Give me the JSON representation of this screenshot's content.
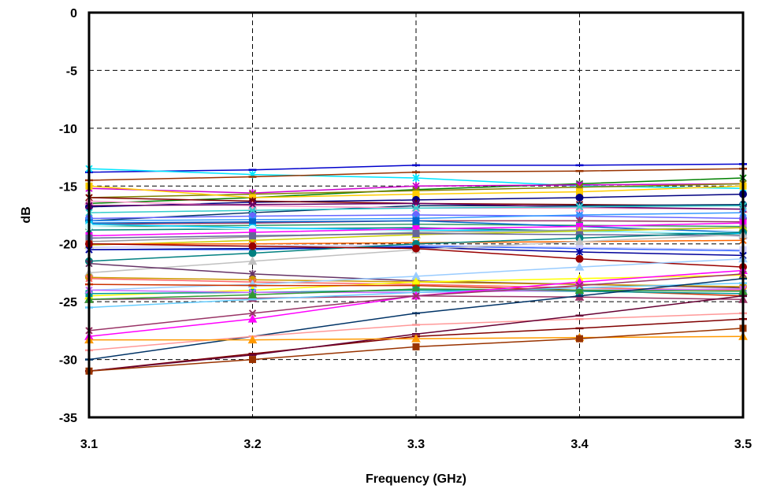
{
  "chart_data": {
    "type": "line",
    "title": "",
    "xlabel": "Frequency (GHz)",
    "ylabel": "dB",
    "x": [
      3.1,
      3.2,
      3.3,
      3.4,
      3.5
    ],
    "x_tick_labels": [
      "3.1",
      "3.2",
      "3.3",
      "3.4",
      "3.5"
    ],
    "y_tick_labels": [
      "0",
      "-5",
      "-10",
      "-15",
      "-20",
      "-25",
      "-30",
      "-35"
    ],
    "xlim": [
      3.1,
      3.5
    ],
    "ylim": [
      -35,
      0
    ],
    "y_ticks": [
      0,
      -5,
      -10,
      -15,
      -20,
      -25,
      -30,
      -35
    ],
    "grid": "dashed",
    "legend": "none",
    "series": [
      {
        "color": "#0000cc",
        "marker": "dash",
        "values": [
          -13.8,
          -13.6,
          -13.2,
          -13.2,
          -13.1
        ]
      },
      {
        "color": "#00e5ff",
        "marker": "star",
        "values": [
          -13.5,
          -14.0,
          -14.3,
          -15.0,
          -15.2
        ]
      },
      {
        "color": "#993300",
        "marker": "dash",
        "values": [
          -14.5,
          -14.2,
          -13.8,
          -13.7,
          -13.5
        ]
      },
      {
        "color": "#008000",
        "marker": "star",
        "values": [
          -16.5,
          -16.0,
          -15.3,
          -14.8,
          -14.3
        ]
      },
      {
        "color": "#cc00cc",
        "marker": "star",
        "values": [
          -15.2,
          -15.6,
          -15.0,
          -14.9,
          -14.8
        ]
      },
      {
        "color": "#808000",
        "marker": "x",
        "values": [
          -16.0,
          -15.7,
          -15.4,
          -15.1,
          -14.8
        ]
      },
      {
        "color": "#ffcc00",
        "marker": "square",
        "values": [
          -15.0,
          -16.0,
          -15.7,
          -15.5,
          -15.0
        ]
      },
      {
        "color": "#000080",
        "marker": "circle",
        "values": [
          -16.8,
          -16.4,
          -16.2,
          -16.0,
          -15.7
        ]
      },
      {
        "color": "#800000",
        "marker": "star",
        "values": [
          -16.0,
          -16.3,
          -16.5,
          -16.6,
          -16.7
        ]
      },
      {
        "color": "#003366",
        "marker": "circle",
        "values": [
          -18.0,
          -17.3,
          -16.7,
          -16.7,
          -16.6
        ]
      },
      {
        "color": "#ff99cc",
        "marker": "triangle",
        "values": [
          -16.3,
          -16.7,
          -16.9,
          -16.9,
          -17.0
        ]
      },
      {
        "color": "#660066",
        "marker": "x",
        "values": [
          -16.7,
          -16.6,
          -16.5,
          -16.8,
          -17.0
        ]
      },
      {
        "color": "#33cccc",
        "marker": "x",
        "values": [
          -17.3,
          -17.1,
          -16.9,
          -16.8,
          -16.7
        ]
      },
      {
        "color": "#6666ff",
        "marker": "circle",
        "values": [
          -17.8,
          -17.6,
          -17.5,
          -17.6,
          -17.8
        ]
      },
      {
        "color": "#3399ff",
        "marker": "x",
        "values": [
          -18.0,
          -17.9,
          -17.8,
          -17.5,
          -17.3
        ]
      },
      {
        "color": "#993366",
        "marker": "star",
        "values": [
          -18.3,
          -18.2,
          -18.0,
          -18.0,
          -18.1
        ]
      },
      {
        "color": "#339966",
        "marker": "square",
        "values": [
          -18.5,
          -18.4,
          -18.3,
          -18.4,
          -18.5
        ]
      },
      {
        "color": "#0066cc",
        "marker": "square",
        "values": [
          -18.2,
          -18.1,
          -18.0,
          -18.5,
          -19.0
        ]
      },
      {
        "color": "#008080",
        "marker": "x",
        "values": [
          -18.8,
          -18.7,
          -18.6,
          -18.9,
          -19.2
        ]
      },
      {
        "color": "#00ccff",
        "marker": "square",
        "values": [
          -18.3,
          -18.6,
          -18.8,
          -18.9,
          -19.1
        ]
      },
      {
        "color": "#ccffff",
        "marker": "circle",
        "values": [
          -18.5,
          -18.7,
          -18.9,
          -19.0,
          -19.0
        ]
      },
      {
        "color": "#ff00ff",
        "marker": "square",
        "values": [
          -19.3,
          -19.0,
          -18.7,
          -18.5,
          -18.2
        ]
      },
      {
        "color": "#999999",
        "marker": "x",
        "values": [
          -19.8,
          -19.4,
          -19.0,
          -18.8,
          -18.6
        ]
      },
      {
        "color": "#cccc00",
        "marker": "triangle",
        "values": [
          -20.1,
          -19.7,
          -19.2,
          -18.9,
          -18.6
        ]
      },
      {
        "color": "#666699",
        "marker": "square",
        "values": [
          -19.5,
          -19.3,
          -19.1,
          -19.2,
          -19.3
        ]
      },
      {
        "color": "#ff6600",
        "marker": "x",
        "values": [
          -20.0,
          -20.0,
          -19.9,
          -19.8,
          -19.7
        ]
      },
      {
        "color": "#3366ff",
        "marker": "star",
        "values": [
          -20.5,
          -20.5,
          -20.2,
          -20.4,
          -20.6
        ]
      },
      {
        "color": "#ccccff",
        "marker": "square",
        "values": [
          -20.3,
          -20.2,
          -20.1,
          -20.3,
          -20.5
        ]
      },
      {
        "color": "#000099",
        "marker": "star",
        "values": [
          -20.5,
          -20.4,
          -20.3,
          -20.7,
          -21.0
        ]
      },
      {
        "color": "#008080",
        "marker": "circle",
        "values": [
          -21.5,
          -20.8,
          -20.0,
          -19.5,
          -19.0
        ]
      },
      {
        "color": "#c0c0c0",
        "marker": "triangle",
        "values": [
          -22.5,
          -21.5,
          -20.5,
          -19.8,
          -19.2
        ]
      },
      {
        "color": "#990000",
        "marker": "circle",
        "values": [
          -20.0,
          -20.2,
          -20.4,
          -21.3,
          -22.0
        ]
      },
      {
        "color": "#663366",
        "marker": "star",
        "values": [
          -21.7,
          -22.6,
          -23.2,
          -23.5,
          -23.8
        ]
      },
      {
        "color": "#cc9900",
        "marker": "circle",
        "values": [
          -22.9,
          -23.1,
          -23.3,
          -23.5,
          -23.7
        ]
      },
      {
        "color": "#ff6666",
        "marker": "x",
        "values": [
          -23.0,
          -23.3,
          -23.5,
          -23.8,
          -24.0
        ]
      },
      {
        "color": "#99ccff",
        "marker": "triangle",
        "values": [
          -24.0,
          -23.5,
          -22.8,
          -22.0,
          -21.3
        ]
      },
      {
        "color": "#ffff00",
        "marker": "triangle",
        "values": [
          -24.5,
          -24.0,
          -23.3,
          -23.0,
          -22.7
        ]
      },
      {
        "color": "#cc3300",
        "marker": "dash",
        "values": [
          -23.5,
          -23.6,
          -23.6,
          -24.0,
          -24.5
        ]
      },
      {
        "color": "#009999",
        "marker": "square",
        "values": [
          -24.3,
          -24.2,
          -24.0,
          -24.1,
          -24.3
        ]
      },
      {
        "color": "#993366",
        "marker": "triangle",
        "values": [
          -24.8,
          -24.7,
          -24.5,
          -24.6,
          -24.8
        ]
      },
      {
        "color": "#cc66ff",
        "marker": "x",
        "values": [
          -24.0,
          -24.2,
          -24.2,
          -24.0,
          -23.9
        ]
      },
      {
        "color": "#339933",
        "marker": "triangle",
        "values": [
          -24.8,
          -24.4,
          -23.9,
          -24.0,
          -24.1
        ]
      },
      {
        "color": "#66ccff",
        "marker": "dash",
        "values": [
          -25.5,
          -24.8,
          -24.2,
          -23.8,
          -23.4
        ]
      },
      {
        "color": "#ff00ff",
        "marker": "triangle",
        "values": [
          -28.0,
          -26.5,
          -24.5,
          -23.3,
          -22.3
        ]
      },
      {
        "color": "#993366",
        "marker": "x",
        "values": [
          -27.5,
          -26.0,
          -24.5,
          -23.6,
          -22.6
        ]
      },
      {
        "color": "#003366",
        "marker": "dash",
        "values": [
          -30.0,
          -28.0,
          -26.0,
          -24.5,
          -23.0
        ]
      },
      {
        "color": "#ff9999",
        "marker": "dash",
        "values": [
          -29.2,
          -28.0,
          -27.0,
          -26.5,
          -26.0
        ]
      },
      {
        "color": "#800000",
        "marker": "dash",
        "values": [
          -31.0,
          -29.5,
          -28.0,
          -27.3,
          -26.5
        ]
      },
      {
        "color": "#660033",
        "marker": "dash",
        "values": [
          -31.0,
          -29.6,
          -27.8,
          -26.2,
          -24.5
        ]
      },
      {
        "color": "#ff9900",
        "marker": "triangle",
        "values": [
          -28.3,
          -28.3,
          -28.2,
          -28.1,
          -28.0
        ]
      },
      {
        "color": "#993300",
        "marker": "square",
        "values": [
          -31.0,
          -30.0,
          -28.9,
          -28.2,
          -27.3
        ]
      }
    ]
  }
}
